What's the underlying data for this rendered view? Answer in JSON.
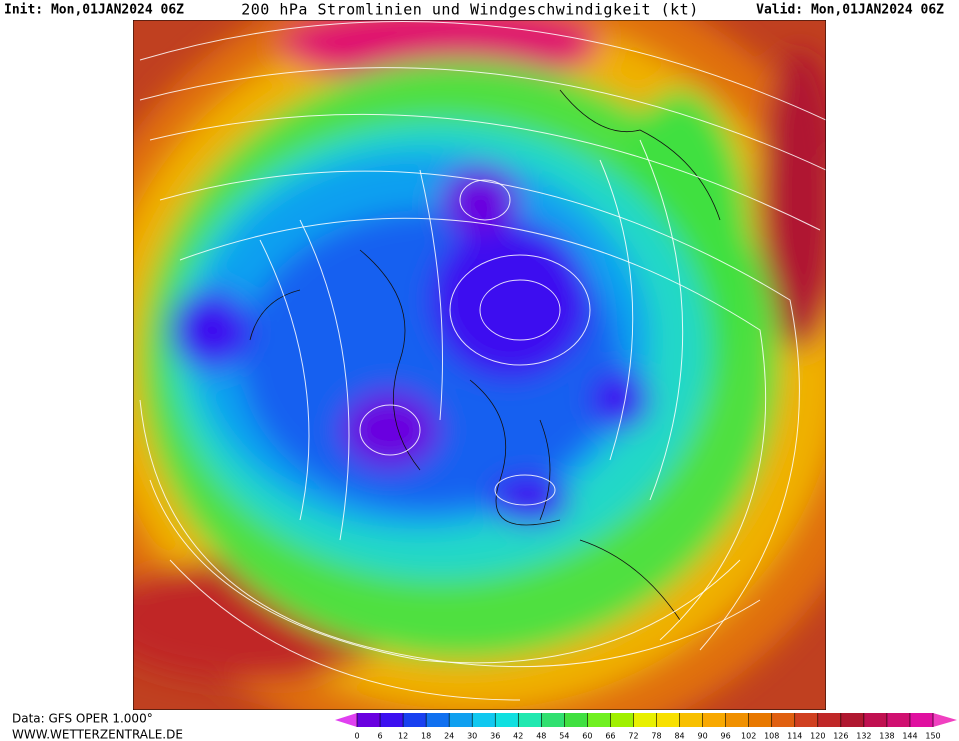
{
  "header": {
    "init": "Init: Mon,01JAN2024 06Z",
    "title": "200 hPa Stromlinien und Windgeschwindigkeit (kt)",
    "valid": "Valid: Mon,01JAN2024 06Z"
  },
  "footer": {
    "data": "Data: GFS OPER 1.000°",
    "website": "WWW.WETTERZENTRALE.DE"
  },
  "colorbar": {
    "ticks": [
      0,
      6,
      12,
      18,
      24,
      30,
      36,
      42,
      48,
      54,
      60,
      66,
      72,
      78,
      84,
      90,
      96,
      102,
      108,
      114,
      120,
      126,
      132,
      138,
      144,
      150
    ],
    "colors": [
      "#6a00e0",
      "#3c10f0",
      "#1840f0",
      "#1070f0",
      "#10a0f0",
      "#10c8f0",
      "#10e0e0",
      "#20e8b0",
      "#30e070",
      "#40e040",
      "#70f020",
      "#a0f000",
      "#e8f000",
      "#f8e000",
      "#f8c000",
      "#f8a800",
      "#f09000",
      "#e87800",
      "#e06010",
      "#d04020",
      "#c02828",
      "#b01830",
      "#c01050",
      "#d01070",
      "#e010a0"
    ]
  }
}
